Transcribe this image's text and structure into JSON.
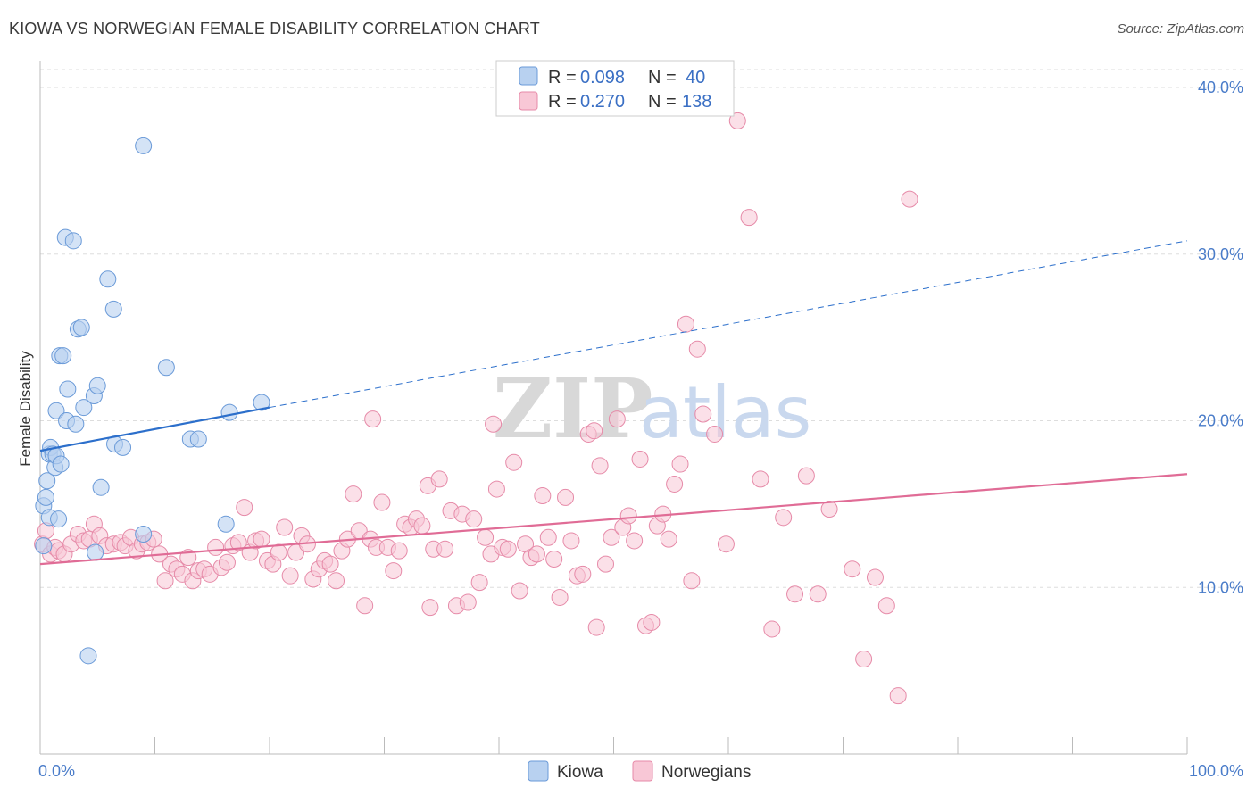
{
  "title": "KIOWA VS NORWEGIAN FEMALE DISABILITY CORRELATION CHART",
  "source": "Source: ZipAtlas.com",
  "watermark": {
    "zip": "ZIP",
    "atlas": "atlas"
  },
  "colors": {
    "kiowa_fill": "#b8d1f0",
    "kiowa_stroke": "#6a9ad8",
    "kiowa_line": "#2c6fcb",
    "norw_fill": "#f8c7d6",
    "norw_stroke": "#e68aa8",
    "norw_line": "#e06c96",
    "tick_text": "#4a7cc9",
    "grid": "#dddddd"
  },
  "legend": {
    "rows": [
      {
        "r_label": "R =",
        "r_value": "0.098",
        "n_label": "N =",
        "n_value": "40"
      },
      {
        "r_label": "R =",
        "r_value": "0.270",
        "n_label": "N =",
        "n_value": "138"
      }
    ]
  },
  "bottom_legend": [
    "Kiowa",
    "Norwegians"
  ],
  "chart_data": {
    "type": "scatter",
    "title": "KIOWA VS NORWEGIAN FEMALE DISABILITY CORRELATION CHART",
    "xlabel": "",
    "ylabel": "Female Disability",
    "xlim": [
      0,
      100
    ],
    "ylim": [
      0,
      41.5
    ],
    "x_ticks": [
      "0.0%",
      "100.0%"
    ],
    "y_ticks": [
      {
        "value": 10,
        "label": "10.0%"
      },
      {
        "value": 20,
        "label": "20.0%"
      },
      {
        "value": 30,
        "label": "30.0%"
      },
      {
        "value": 40,
        "label": "40.0%"
      }
    ],
    "grid": true,
    "legend_position": "top-center",
    "series": [
      {
        "name": "Kiowa",
        "R": 0.098,
        "N": 40,
        "trend": {
          "x0": 0,
          "y0": 18.2,
          "x1_solid": 20,
          "y1_solid": 20.8,
          "x1_dash": 100,
          "y1_dash": 30.8
        },
        "points": [
          [
            0.3,
            12.5
          ],
          [
            0.3,
            14.9
          ],
          [
            0.5,
            15.4
          ],
          [
            0.6,
            16.4
          ],
          [
            0.8,
            14.2
          ],
          [
            0.8,
            18.0
          ],
          [
            0.9,
            18.4
          ],
          [
            1.1,
            18.0
          ],
          [
            1.3,
            17.2
          ],
          [
            1.4,
            17.9
          ],
          [
            1.6,
            14.1
          ],
          [
            1.8,
            17.4
          ],
          [
            1.4,
            20.6
          ],
          [
            1.7,
            23.9
          ],
          [
            2.0,
            23.9
          ],
          [
            2.3,
            20.0
          ],
          [
            2.4,
            21.9
          ],
          [
            2.2,
            31.0
          ],
          [
            2.9,
            30.8
          ],
          [
            3.1,
            19.8
          ],
          [
            3.3,
            25.5
          ],
          [
            3.6,
            25.6
          ],
          [
            3.8,
            20.8
          ],
          [
            4.7,
            21.5
          ],
          [
            5.0,
            22.1
          ],
          [
            5.3,
            16.0
          ],
          [
            5.9,
            28.5
          ],
          [
            6.4,
            26.7
          ],
          [
            6.5,
            18.6
          ],
          [
            7.2,
            18.4
          ],
          [
            9.0,
            36.5
          ],
          [
            9.0,
            13.2
          ],
          [
            11.0,
            23.2
          ],
          [
            13.1,
            18.9
          ],
          [
            13.8,
            18.9
          ],
          [
            16.2,
            13.8
          ],
          [
            16.5,
            20.5
          ],
          [
            19.3,
            21.1
          ],
          [
            4.8,
            12.1
          ],
          [
            4.2,
            5.9
          ]
        ]
      },
      {
        "name": "Norwegians",
        "R": 0.27,
        "N": 138,
        "trend": {
          "x0": 0,
          "y0": 11.4,
          "x1": 100,
          "y1": 16.8
        },
        "points": [
          [
            0.2,
            12.6
          ],
          [
            0.5,
            13.4
          ],
          [
            0.9,
            12.0
          ],
          [
            1.3,
            12.4
          ],
          [
            1.6,
            12.2
          ],
          [
            2.1,
            12.0
          ],
          [
            2.7,
            12.6
          ],
          [
            3.3,
            13.2
          ],
          [
            3.8,
            12.8
          ],
          [
            4.3,
            12.9
          ],
          [
            4.7,
            13.8
          ],
          [
            5.2,
            13.1
          ],
          [
            5.8,
            12.5
          ],
          [
            6.4,
            12.6
          ],
          [
            7.0,
            12.7
          ],
          [
            7.4,
            12.5
          ],
          [
            7.9,
            13.0
          ],
          [
            8.4,
            12.2
          ],
          [
            8.9,
            12.6
          ],
          [
            9.4,
            12.7
          ],
          [
            9.9,
            12.9
          ],
          [
            10.4,
            12.0
          ],
          [
            10.9,
            10.4
          ],
          [
            11.4,
            11.4
          ],
          [
            11.9,
            11.1
          ],
          [
            12.4,
            10.8
          ],
          [
            12.9,
            11.8
          ],
          [
            13.3,
            10.4
          ],
          [
            13.8,
            11.0
          ],
          [
            14.3,
            11.1
          ],
          [
            14.8,
            10.8
          ],
          [
            15.3,
            12.4
          ],
          [
            15.8,
            11.2
          ],
          [
            16.3,
            11.5
          ],
          [
            16.8,
            12.5
          ],
          [
            17.3,
            12.7
          ],
          [
            17.8,
            14.8
          ],
          [
            18.3,
            12.1
          ],
          [
            18.8,
            12.8
          ],
          [
            19.3,
            12.9
          ],
          [
            19.8,
            11.6
          ],
          [
            20.3,
            11.4
          ],
          [
            20.8,
            12.1
          ],
          [
            21.3,
            13.6
          ],
          [
            21.8,
            10.7
          ],
          [
            22.3,
            12.1
          ],
          [
            22.8,
            13.1
          ],
          [
            23.3,
            12.6
          ],
          [
            23.8,
            10.5
          ],
          [
            24.3,
            11.1
          ],
          [
            24.8,
            11.6
          ],
          [
            25.3,
            11.4
          ],
          [
            25.8,
            10.4
          ],
          [
            26.3,
            12.2
          ],
          [
            26.8,
            12.9
          ],
          [
            27.3,
            15.6
          ],
          [
            27.8,
            13.4
          ],
          [
            28.3,
            8.9
          ],
          [
            28.8,
            12.9
          ],
          [
            29.3,
            12.4
          ],
          [
            29.8,
            15.1
          ],
          [
            30.3,
            12.4
          ],
          [
            30.8,
            11.0
          ],
          [
            31.3,
            12.2
          ],
          [
            31.8,
            13.8
          ],
          [
            32.3,
            13.6
          ],
          [
            32.8,
            14.1
          ],
          [
            33.3,
            13.7
          ],
          [
            33.8,
            16.1
          ],
          [
            34.3,
            12.3
          ],
          [
            34.8,
            16.5
          ],
          [
            35.3,
            12.3
          ],
          [
            35.8,
            14.6
          ],
          [
            36.3,
            8.9
          ],
          [
            36.8,
            14.4
          ],
          [
            37.3,
            9.1
          ],
          [
            37.8,
            14.1
          ],
          [
            38.3,
            10.3
          ],
          [
            38.8,
            13.0
          ],
          [
            39.3,
            12.0
          ],
          [
            39.8,
            15.9
          ],
          [
            40.3,
            12.4
          ],
          [
            40.8,
            12.3
          ],
          [
            41.3,
            17.5
          ],
          [
            41.8,
            9.8
          ],
          [
            42.3,
            12.6
          ],
          [
            42.8,
            11.8
          ],
          [
            43.3,
            12.0
          ],
          [
            43.8,
            15.5
          ],
          [
            44.3,
            13.0
          ],
          [
            44.8,
            11.7
          ],
          [
            45.3,
            9.4
          ],
          [
            45.8,
            15.4
          ],
          [
            46.3,
            12.8
          ],
          [
            46.8,
            10.7
          ],
          [
            47.3,
            10.8
          ],
          [
            47.8,
            19.2
          ],
          [
            48.3,
            19.4
          ],
          [
            48.8,
            17.3
          ],
          [
            49.3,
            11.4
          ],
          [
            49.8,
            13.0
          ],
          [
            50.3,
            20.1
          ],
          [
            50.8,
            13.6
          ],
          [
            51.3,
            14.3
          ],
          [
            51.8,
            12.8
          ],
          [
            52.3,
            17.7
          ],
          [
            52.8,
            7.7
          ],
          [
            53.3,
            7.9
          ],
          [
            53.8,
            13.7
          ],
          [
            54.3,
            14.4
          ],
          [
            54.8,
            12.9
          ],
          [
            55.3,
            16.2
          ],
          [
            55.8,
            17.4
          ],
          [
            56.3,
            25.8
          ],
          [
            56.8,
            10.4
          ],
          [
            57.3,
            24.3
          ],
          [
            57.8,
            20.4
          ],
          [
            58.8,
            19.2
          ],
          [
            59.8,
            12.6
          ],
          [
            60.8,
            38.0
          ],
          [
            61.8,
            32.2
          ],
          [
            62.8,
            16.5
          ],
          [
            63.8,
            7.5
          ],
          [
            64.8,
            14.2
          ],
          [
            65.8,
            9.6
          ],
          [
            66.8,
            16.7
          ],
          [
            67.8,
            9.6
          ],
          [
            68.8,
            14.7
          ],
          [
            70.8,
            11.1
          ],
          [
            71.8,
            5.7
          ],
          [
            72.8,
            10.6
          ],
          [
            73.8,
            8.9
          ],
          [
            74.8,
            3.5
          ],
          [
            75.8,
            33.3
          ],
          [
            39.5,
            19.8
          ],
          [
            29.0,
            20.1
          ],
          [
            48.5,
            7.6
          ],
          [
            34.0,
            8.8
          ]
        ]
      }
    ]
  }
}
